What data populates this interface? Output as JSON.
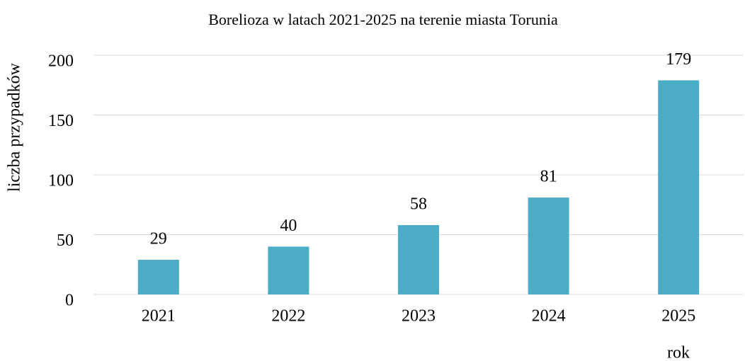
{
  "chart_data": {
    "type": "bar",
    "title": "Borelioza w latach 2021-2025 na terenie miasta Torunia",
    "x_label": "rok",
    "y_label": "liczba przypadków",
    "categories": [
      "2021",
      "2022",
      "2023",
      "2024",
      "2025"
    ],
    "values": [
      29,
      40,
      58,
      81,
      179
    ],
    "color": "#4bacc6",
    "ylim": [
      0,
      200
    ],
    "yticks": [
      0,
      50,
      100,
      150,
      200
    ],
    "grid": true
  }
}
